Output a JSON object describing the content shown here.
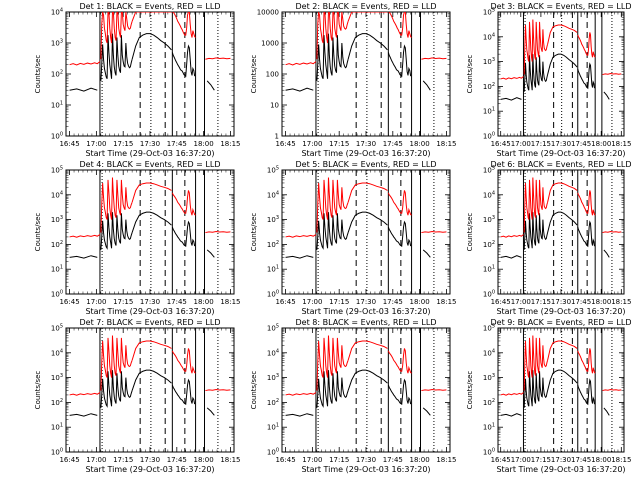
{
  "chart_data": {
    "type": "line",
    "layout": "3x3 grid",
    "x_ticks": [
      "16:45",
      "17:00",
      "17:15",
      "17:30",
      "17:45",
      "18:00",
      "18:15"
    ],
    "x_range_minutes": [
      -2,
      92
    ],
    "xlabel": "Start Time (29-Oct-03 16:37:20)",
    "ylabel": "Counts/sec",
    "y_scale": "log",
    "colors": {
      "events": "#000000",
      "lld": "#ff0000",
      "axes": "#000000"
    },
    "markers": {
      "solid": [
        17,
        57.5,
        70.5,
        75.5
      ],
      "dashed": [
        39.5,
        53.5,
        64.5
      ],
      "dotted": [
        18.2,
        45.5,
        83
      ]
    },
    "panels": [
      {
        "title": "Det 1: BLACK = Events, RED = LLD",
        "ylim": [
          1,
          10000
        ],
        "ytick_labels": [
          "10^0",
          "10^1",
          "10^2",
          "10^3",
          "10^4"
        ]
      },
      {
        "title": "Det 2: BLACK = Events, RED = LLD",
        "ylim": [
          1,
          10000
        ],
        "ytick_labels": [
          "1",
          "10",
          "100",
          "1000",
          "10000"
        ]
      },
      {
        "title": "Det 3: BLACK = Events, RED = LLD",
        "ylim": [
          1,
          100000
        ],
        "ytick_labels": [
          "10^0",
          "10^1",
          "10^2",
          "10^3",
          "10^4",
          "10^5"
        ]
      },
      {
        "title": "Det 4: BLACK = Events, RED = LLD",
        "ylim": [
          1,
          100000
        ],
        "ytick_labels": [
          "10^0",
          "10^1",
          "10^2",
          "10^3",
          "10^4",
          "10^5"
        ]
      },
      {
        "title": "Det 5: BLACK = Events, RED = LLD",
        "ylim": [
          1,
          100000
        ],
        "ytick_labels": [
          "10^0",
          "10^1",
          "10^2",
          "10^3",
          "10^4",
          "10^5"
        ]
      },
      {
        "title": "Det 6: BLACK = Events, RED = LLD",
        "ylim": [
          1,
          100000
        ],
        "ytick_labels": [
          "10^0",
          "10^1",
          "10^2",
          "10^3",
          "10^4",
          "10^5"
        ]
      },
      {
        "title": "Det 7: BLACK = Events, RED = LLD",
        "ylim": [
          1,
          100000
        ],
        "ytick_labels": [
          "10^0",
          "10^1",
          "10^2",
          "10^3",
          "10^4",
          "10^5"
        ]
      },
      {
        "title": "Det 8: BLACK = Events, RED = LLD",
        "ylim": [
          1,
          100000
        ],
        "ytick_labels": [
          "10^0",
          "10^1",
          "10^2",
          "10^3",
          "10^4",
          "10^5"
        ]
      },
      {
        "title": "Det 9: BLACK = Events, RED = LLD",
        "ylim": [
          1,
          100000
        ],
        "ytick_labels": [
          "10^0",
          "10^1",
          "10^2",
          "10^3",
          "10^4",
          "10^5"
        ]
      }
    ],
    "series_events": {
      "segments": [
        {
          "x": [
            0,
            4,
            8,
            12,
            15.5
          ],
          "y": [
            30,
            33,
            28,
            35,
            30
          ]
        },
        {
          "x": [
            17.5,
            18,
            18.5,
            19,
            19.5,
            20,
            20.5,
            21,
            21.5,
            22,
            22.5,
            23,
            23.5,
            24,
            24.5,
            25,
            25.5,
            26,
            26.5,
            27,
            27.5,
            28,
            28.5,
            29,
            29.5,
            30,
            30.5,
            31,
            31.5,
            32,
            32.5,
            33,
            33.5,
            34,
            34.5,
            35
          ],
          "y": [
            60,
            200,
            900,
            300,
            150,
            110,
            80,
            70,
            1800,
            500,
            200,
            120,
            70,
            2000,
            400,
            170,
            110,
            90,
            1500,
            400,
            180,
            130,
            110,
            1800,
            400,
            250,
            180,
            170,
            1000,
            350,
            220,
            180,
            160,
            170,
            230,
            300
          ]
        },
        {
          "x": [
            35,
            37,
            39,
            41,
            43,
            45,
            47,
            49,
            51,
            53,
            55,
            57
          ],
          "y": [
            300,
            800,
            1500,
            1800,
            2000,
            2000,
            1800,
            1500,
            1200,
            1000,
            800,
            600
          ]
        },
        {
          "x": [
            57.5,
            58,
            58.5,
            59,
            59.5,
            60,
            60.5,
            61,
            61.5,
            62,
            62.5,
            63,
            63.5,
            64,
            64.5,
            65,
            65.5,
            66,
            66.5,
            67,
            67.5,
            68,
            68.5,
            69,
            69.5,
            70
          ],
          "y": [
            500,
            400,
            350,
            300,
            260,
            230,
            200,
            180,
            160,
            140,
            130,
            125,
            110,
            95,
            90,
            85,
            200,
            500,
            800,
            700,
            300,
            120,
            90,
            150,
            130,
            85
          ]
        },
        {
          "x": [
            77,
            79,
            81
          ],
          "y": [
            60,
            45,
            30
          ]
        }
      ]
    },
    "series_lld": {
      "segments": [
        {
          "x": [
            0,
            2,
            4,
            6,
            8,
            10,
            12,
            14,
            15.5,
            17
          ],
          "y": [
            200,
            215,
            195,
            220,
            205,
            225,
            210,
            230,
            215,
            250
          ]
        },
        {
          "x": [
            17.5,
            18,
            18.5,
            19,
            19.5,
            20,
            20.5,
            21,
            21.5,
            22,
            22.5,
            23,
            23.5,
            24,
            24.5,
            25,
            25.5,
            26,
            26.5,
            27,
            27.5,
            28,
            28.5,
            29,
            29.5,
            30,
            30.5,
            31,
            31.5,
            32,
            32.5,
            33,
            33.5,
            34,
            34.5,
            35
          ],
          "y": [
            300,
            4000,
            30000,
            8000,
            3000,
            2000,
            1200,
            1000,
            40000,
            12000,
            3000,
            1500,
            1000,
            50000,
            10000,
            3000,
            1500,
            1200,
            40000,
            10000,
            3000,
            2000,
            1500,
            40000,
            10000,
            4000,
            3000,
            2500,
            20000,
            6000,
            3500,
            3000,
            2800,
            3000,
            4000,
            5000
          ]
        },
        {
          "x": [
            35,
            37,
            39,
            41,
            43,
            45,
            47,
            49,
            51,
            53,
            55,
            57
          ],
          "y": [
            5000,
            15000,
            25000,
            28000,
            30000,
            30000,
            28000,
            25000,
            22000,
            20000,
            18000,
            15000
          ]
        },
        {
          "x": [
            57.5,
            58,
            58.5,
            59,
            59.5,
            60,
            60.5,
            61,
            61.5,
            62,
            62.5,
            63,
            63.5,
            64,
            64.5,
            65,
            65.5,
            66,
            66.5,
            67,
            67.5,
            68,
            68.5,
            69,
            69.5,
            70,
            70.5
          ],
          "y": [
            12000,
            10000,
            9000,
            8000,
            7000,
            6000,
            5000,
            4500,
            4000,
            3500,
            3000,
            2700,
            2300,
            2000,
            1800,
            1800,
            3000,
            8000,
            15000,
            12000,
            4000,
            2000,
            1500,
            2500,
            2000,
            1600,
            1500
          ]
        },
        {
          "x": [
            76,
            78,
            80,
            82,
            84,
            86,
            88,
            90
          ],
          "y": [
            300,
            320,
            310,
            330,
            315,
            325,
            310,
            320
          ]
        }
      ]
    }
  }
}
